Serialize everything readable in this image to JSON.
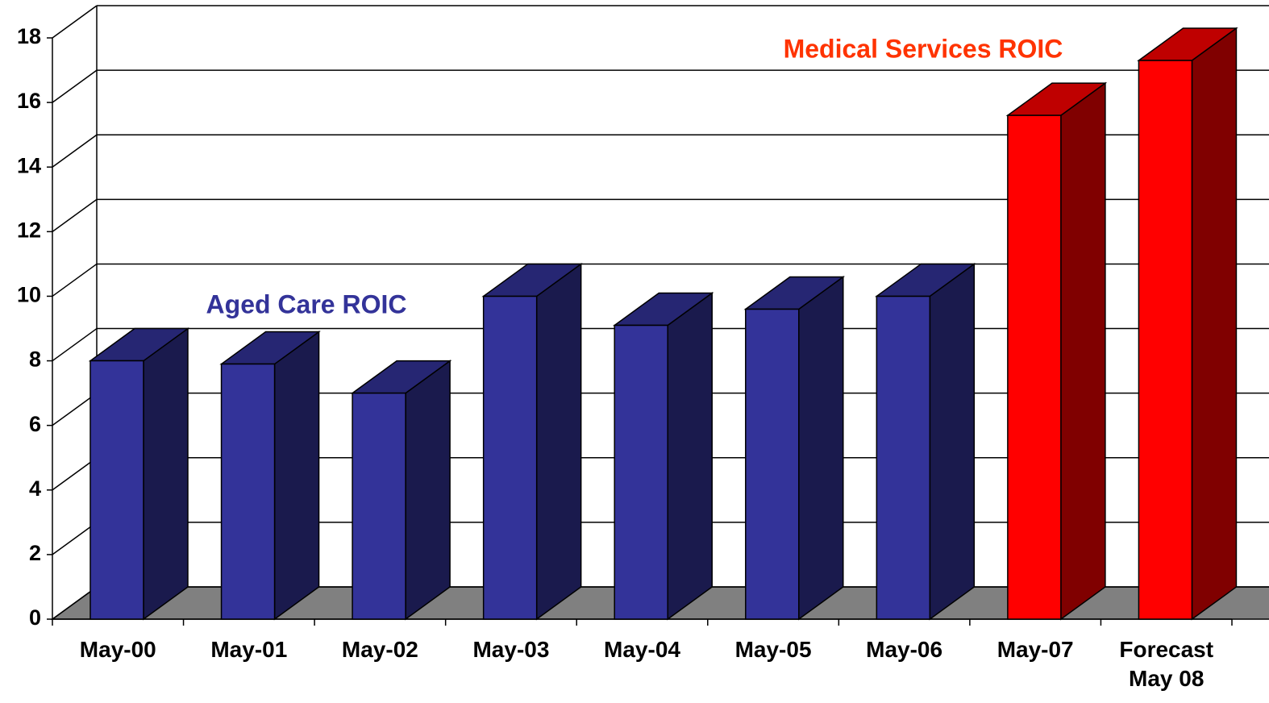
{
  "chart_data": {
    "type": "bar3d",
    "categories": [
      "May-00",
      "May-01",
      "May-02",
      "May-03",
      "May-04",
      "May-05",
      "May-06",
      "May-07",
      "Forecast May 08"
    ],
    "series": [
      {
        "name": "Aged Care ROIC",
        "color": "#333399",
        "values": [
          8.0,
          7.9,
          7.0,
          10.0,
          9.1,
          9.6,
          10.0,
          null,
          null
        ]
      },
      {
        "name": "Medical Services ROIC",
        "color": "#ff0000",
        "values": [
          null,
          null,
          null,
          null,
          null,
          null,
          null,
          15.6,
          17.3
        ]
      }
    ],
    "ylim": [
      0,
      18
    ],
    "yticks": [
      0,
      2,
      4,
      6,
      8,
      10,
      12,
      14,
      16,
      18
    ],
    "grid": true
  }
}
